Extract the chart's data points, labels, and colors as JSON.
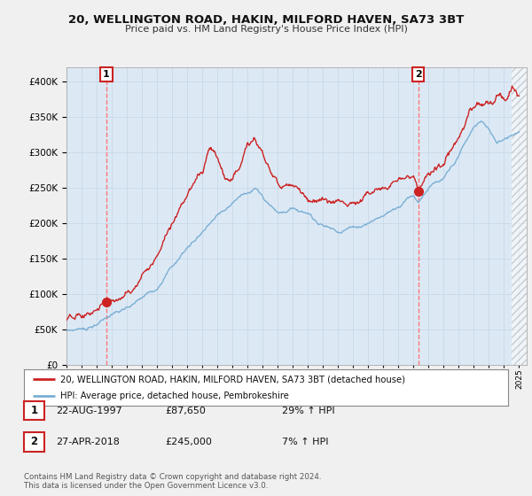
{
  "title": "20, WELLINGTON ROAD, HAKIN, MILFORD HAVEN, SA73 3BT",
  "subtitle": "Price paid vs. HM Land Registry's House Price Index (HPI)",
  "bg_color": "#f0f0f0",
  "plot_bg_color": "#dce9f5",
  "hpi_color": "#7bafd4",
  "price_color": "#cc2222",
  "marker_color": "#cc2222",
  "vline_color": "#ff7777",
  "legend_entries": [
    "20, WELLINGTON ROAD, HAKIN, MILFORD HAVEN, SA73 3BT (detached house)",
    "HPI: Average price, detached house, Pembrokeshire"
  ],
  "transaction1_date": "22-AUG-1997",
  "transaction1_price": "£87,650",
  "transaction1_hpi": "29% ↑ HPI",
  "transaction1_year": 1997.64,
  "transaction1_value": 87650,
  "transaction2_date": "27-APR-2018",
  "transaction2_price": "£245,000",
  "transaction2_hpi": "7% ↑ HPI",
  "transaction2_year": 2018.32,
  "transaction2_value": 245000,
  "copyright_text": "Contains HM Land Registry data © Crown copyright and database right 2024.\nThis data is licensed under the Open Government Licence v3.0.",
  "xmin": 1995.0,
  "xmax": 2025.5,
  "hatch_start": 2024.5,
  "ymin": 0,
  "ymax": 420000,
  "yticks": [
    0,
    50000,
    100000,
    150000,
    200000,
    250000,
    300000,
    350000,
    400000
  ]
}
